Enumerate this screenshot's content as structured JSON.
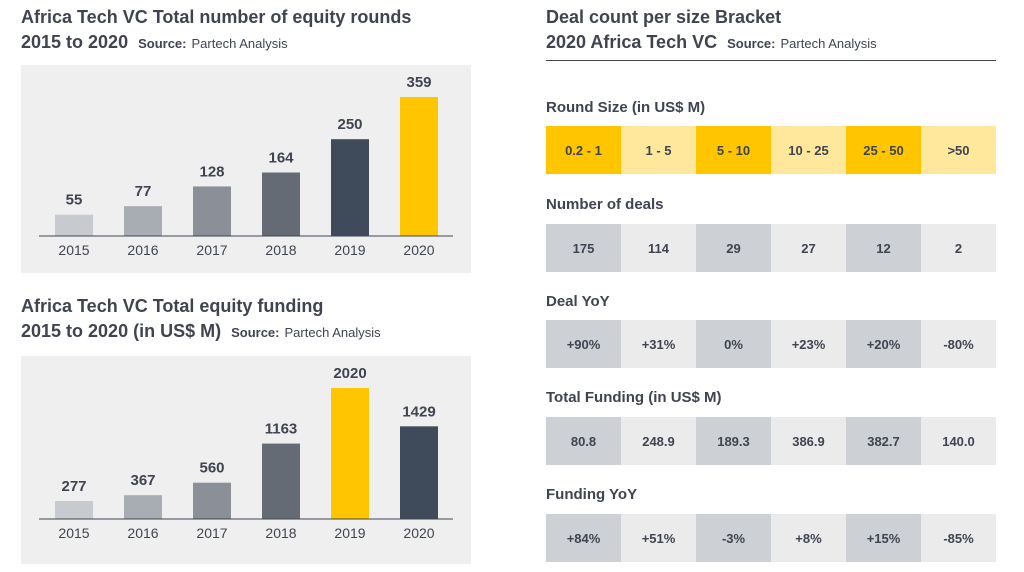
{
  "left_top": {
    "title_line1": "Africa Tech VC Total number of equity rounds",
    "title_line2": "2015 to 2020",
    "source_label": "Source:",
    "source_text": "Partech Analysis"
  },
  "left_bottom": {
    "title_line1": "Africa Tech VC Total equity funding",
    "title_line2": "2015 to 2020 (in US$ M)",
    "source_label": "Source:",
    "source_text": "Partech Analysis"
  },
  "right": {
    "title_line1": "Deal count per size Bracket",
    "title_line2": "2020 Africa Tech VC",
    "source_label": "Source:",
    "source_text": "Partech Analysis",
    "sections": [
      {
        "label": "Round Size (in US$ M)",
        "values": [
          "0.2 - 1",
          "1 - 5",
          "5 - 10",
          "10 - 25",
          "25 - 50",
          ">50"
        ]
      },
      {
        "label": "Number of deals",
        "values": [
          "175",
          "114",
          "29",
          "27",
          "12",
          "2"
        ]
      },
      {
        "label": "Deal YoY",
        "values": [
          "+90%",
          "+31%",
          "0%",
          "+23%",
          "+20%",
          "-80%"
        ]
      },
      {
        "label": "Total Funding (in US$ M)",
        "values": [
          "80.8",
          "248.9",
          "189.3",
          "386.9",
          "382.7",
          "140.0"
        ]
      },
      {
        "label": "Funding YoY",
        "values": [
          "+84%",
          "+51%",
          "-3%",
          "+8%",
          "+15%",
          "-85%"
        ]
      }
    ]
  },
  "chart_data": [
    {
      "type": "bar",
      "title": "Africa Tech VC Total number of equity rounds 2015 to 2020",
      "categories": [
        "2015",
        "2016",
        "2017",
        "2018",
        "2019",
        "2020"
      ],
      "values": [
        55,
        77,
        128,
        164,
        250,
        359
      ],
      "colors": [
        "#c7cacf",
        "#a8adb4",
        "#8a8f98",
        "#646b75",
        "#3f4a5a",
        "#ffc600"
      ],
      "ylim": [
        0,
        359
      ]
    },
    {
      "type": "bar",
      "title": "Africa Tech VC Total equity funding 2015 to 2020 (in US$ M)",
      "categories": [
        "2015",
        "2016",
        "2017",
        "2018",
        "2019",
        "2020"
      ],
      "values": [
        277,
        367,
        560,
        1163,
        2020,
        1429
      ],
      "colors": [
        "#c7cacf",
        "#a8adb4",
        "#8a8f98",
        "#646b75",
        "#ffc600",
        "#3f4a5a"
      ],
      "ylim": [
        0,
        2020
      ]
    }
  ],
  "colors": {
    "text": "#3f4450",
    "panel_bg": "#efefef",
    "gold": "#ffc600",
    "light_gold": "#ffe79b",
    "gray_cell": "#cdd0d4",
    "light_cell": "#ebebeb"
  }
}
